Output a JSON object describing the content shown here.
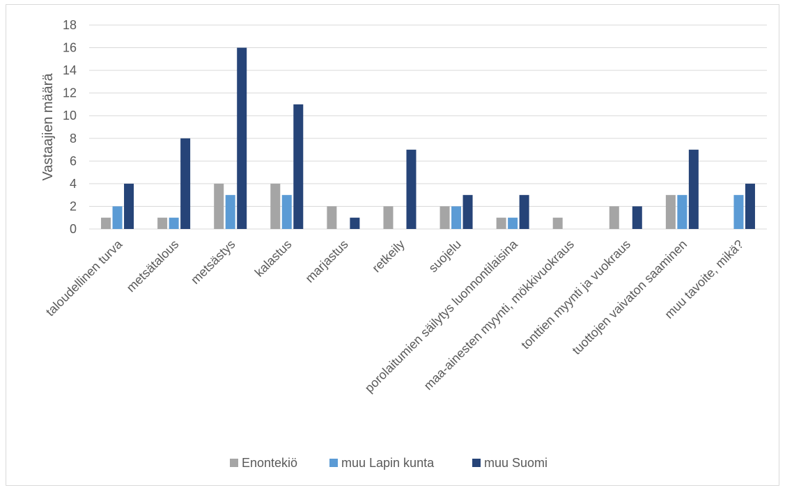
{
  "chart_data": {
    "type": "bar",
    "title": "",
    "xlabel": "",
    "ylabel": "Vastaajien määrä",
    "ylim": [
      0,
      18
    ],
    "yticks": [
      0,
      2,
      4,
      6,
      8,
      10,
      12,
      14,
      16,
      18
    ],
    "grid": true,
    "legend_position": "bottom",
    "categories": [
      "taloudellinen turva",
      "metsätalous",
      "metsästys",
      "kalastus",
      "marjastus",
      "retkeily",
      "suojelu",
      "porolaitumien säilytys luonnontilaisina",
      "maa-ainesten myynti, mökkivuokraus",
      "tonttien myynti ja vuokraus",
      "tuottojen vaivaton saaminen",
      "muu tavoite, mikä?"
    ],
    "series": [
      {
        "name": "Enontekiö",
        "color": "#a5a5a5",
        "values": [
          1,
          1,
          4,
          4,
          2,
          2,
          2,
          1,
          1,
          2,
          3,
          0
        ]
      },
      {
        "name": "muu Lapin kunta",
        "color": "#5b9bd5",
        "values": [
          2,
          1,
          3,
          3,
          0,
          0,
          2,
          1,
          0,
          0,
          3,
          3
        ]
      },
      {
        "name": "muu Suomi",
        "color": "#264478",
        "values": [
          4,
          8,
          16,
          11,
          1,
          7,
          3,
          3,
          0,
          2,
          7,
          4
        ]
      }
    ]
  }
}
